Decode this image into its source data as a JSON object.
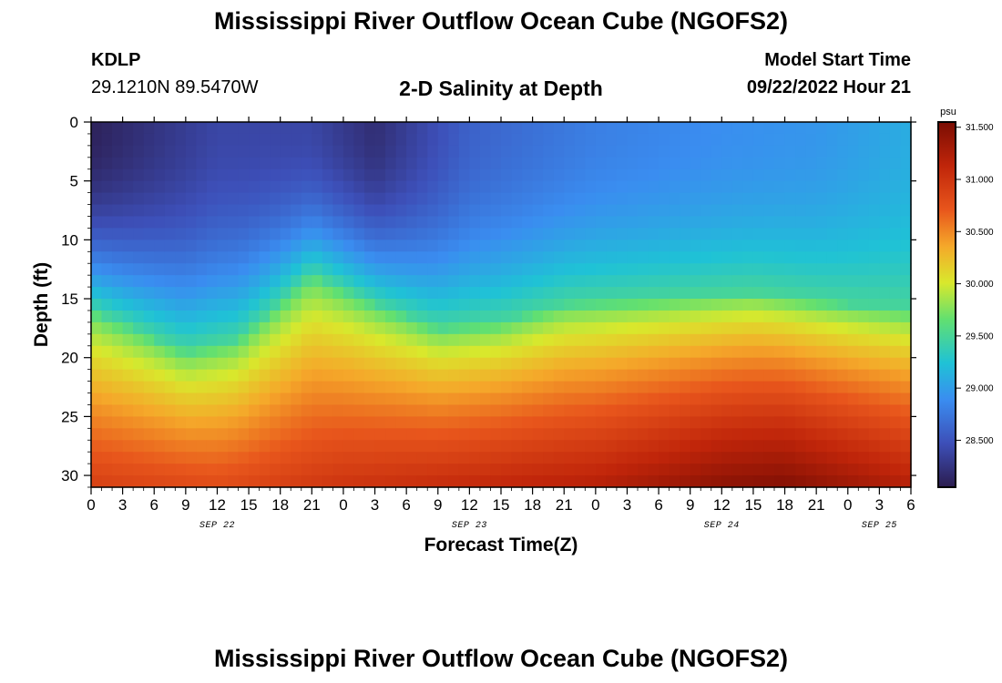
{
  "header": {
    "title": "Mississippi River Outflow Ocean Cube (NGOFS2)",
    "station_id": "KDLP",
    "station_coords": "29.1210N  89.5470W",
    "subtitle": "2-D Salinity at Depth",
    "model_start_label": "Model Start Time",
    "model_start_value": "09/22/2022 Hour 21"
  },
  "footer": {
    "title": "Mississippi River Outflow Ocean Cube (NGOFS2)"
  },
  "colors": {
    "low": "#2b1c4e",
    "mid": "#e8e82a",
    "high": "#7a0d03"
  },
  "chart_data": {
    "type": "heatmap",
    "xlabel": "Forecast Time(Z)",
    "ylabel": "Depth (ft)",
    "x_ticks": [
      "0",
      "3",
      "6",
      "9",
      "12",
      "15",
      "18",
      "21",
      "0",
      "3",
      "6",
      "9",
      "12",
      "15",
      "18",
      "21",
      "0",
      "3",
      "6",
      "9",
      "12",
      "15",
      "18",
      "21",
      "0",
      "3",
      "6"
    ],
    "date_labels": [
      {
        "label": "SEP 22",
        "hour": 12
      },
      {
        "label": "SEP 23",
        "hour": 36
      },
      {
        "label": "SEP 24",
        "hour": 60
      },
      {
        "label": "SEP 25",
        "hour": 75
      }
    ],
    "x_range": [
      0,
      78
    ],
    "y_ticks": [
      0,
      5,
      10,
      15,
      20,
      25,
      30
    ],
    "y_range": [
      0,
      31
    ],
    "colorbar": {
      "unit": "psu",
      "ticks": [
        "31.500",
        "31.000",
        "30.500",
        "30.000",
        "29.500",
        "29.000",
        "28.500"
      ],
      "range": [
        28.05,
        31.55
      ]
    },
    "isohaline_29_5_depth_ft": [
      {
        "hour": 0,
        "depth": 16.0
      },
      {
        "hour": 9,
        "depth": 19.5
      },
      {
        "hour": 14,
        "depth": 18.5
      },
      {
        "hour": 21,
        "depth": 13.0
      },
      {
        "hour": 27,
        "depth": 15.5
      },
      {
        "hour": 33,
        "depth": 17.5
      },
      {
        "hour": 39,
        "depth": 17.0
      },
      {
        "hour": 45,
        "depth": 15.5
      },
      {
        "hour": 54,
        "depth": 15.0
      },
      {
        "hour": 63,
        "depth": 14.5
      },
      {
        "hour": 72,
        "depth": 15.5
      },
      {
        "hour": 78,
        "depth": 16.0
      }
    ],
    "surface_salinity_psu": [
      {
        "hour": 0,
        "value": 28.1
      },
      {
        "hour": 6,
        "value": 28.25
      },
      {
        "hour": 12,
        "value": 28.4
      },
      {
        "hour": 21,
        "value": 28.4
      },
      {
        "hour": 27,
        "value": 28.2
      },
      {
        "hour": 36,
        "value": 28.6
      },
      {
        "hour": 48,
        "value": 28.8
      },
      {
        "hour": 60,
        "value": 28.9
      },
      {
        "hour": 69,
        "value": 28.95
      },
      {
        "hour": 78,
        "value": 29.1
      }
    ],
    "bottom_salinity_psu": [
      {
        "hour": 0,
        "value": 30.9
      },
      {
        "hour": 12,
        "value": 30.8
      },
      {
        "hour": 24,
        "value": 31.0
      },
      {
        "hour": 48,
        "value": 31.2
      },
      {
        "hour": 60,
        "value": 31.45
      },
      {
        "hour": 66,
        "value": 31.5
      },
      {
        "hour": 78,
        "value": 31.2
      }
    ]
  }
}
